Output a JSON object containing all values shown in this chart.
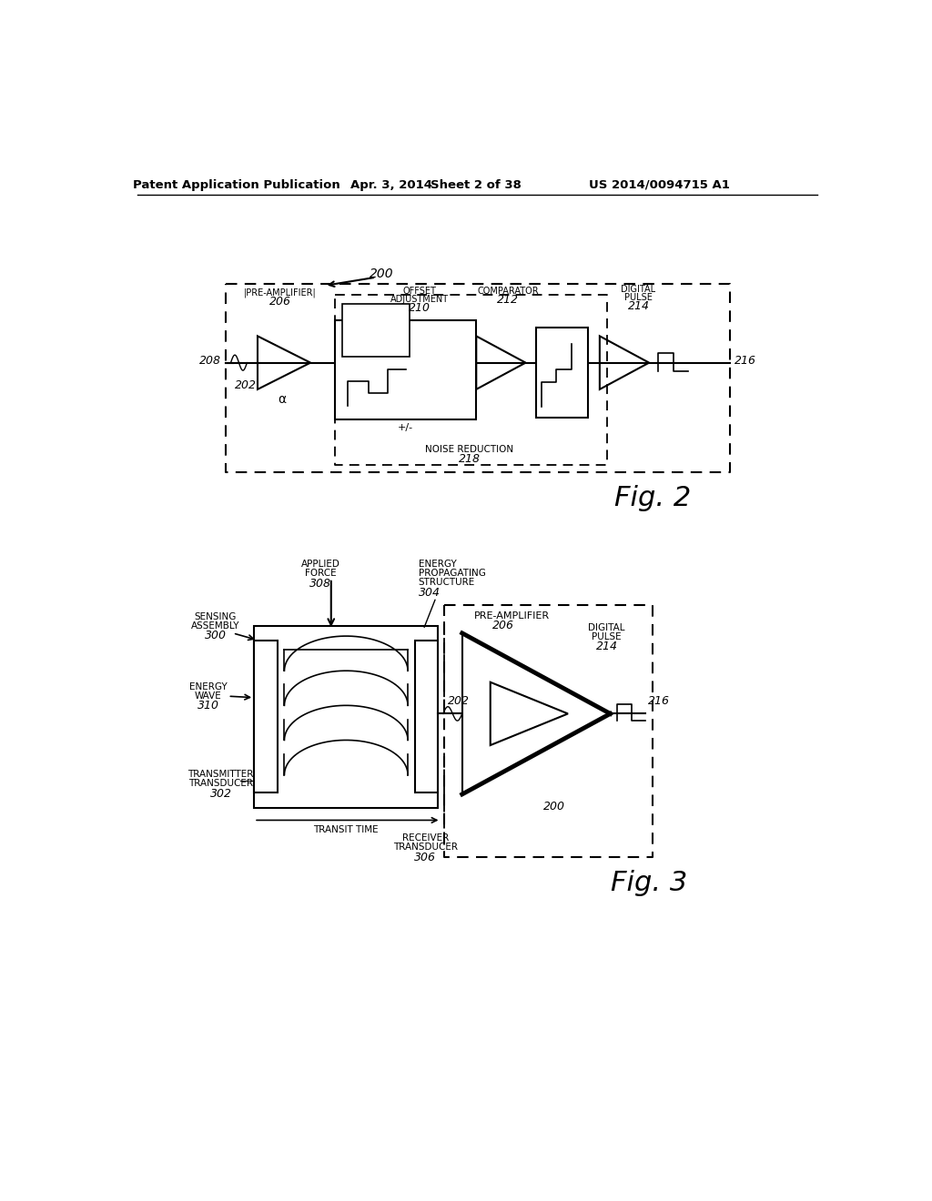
{
  "bg_color": "#ffffff",
  "header_left": "Patent Application Publication",
  "header_date": "Apr. 3, 2014",
  "header_sheet": "Sheet 2 of 38",
  "header_patent": "US 2014/0094715 A1"
}
